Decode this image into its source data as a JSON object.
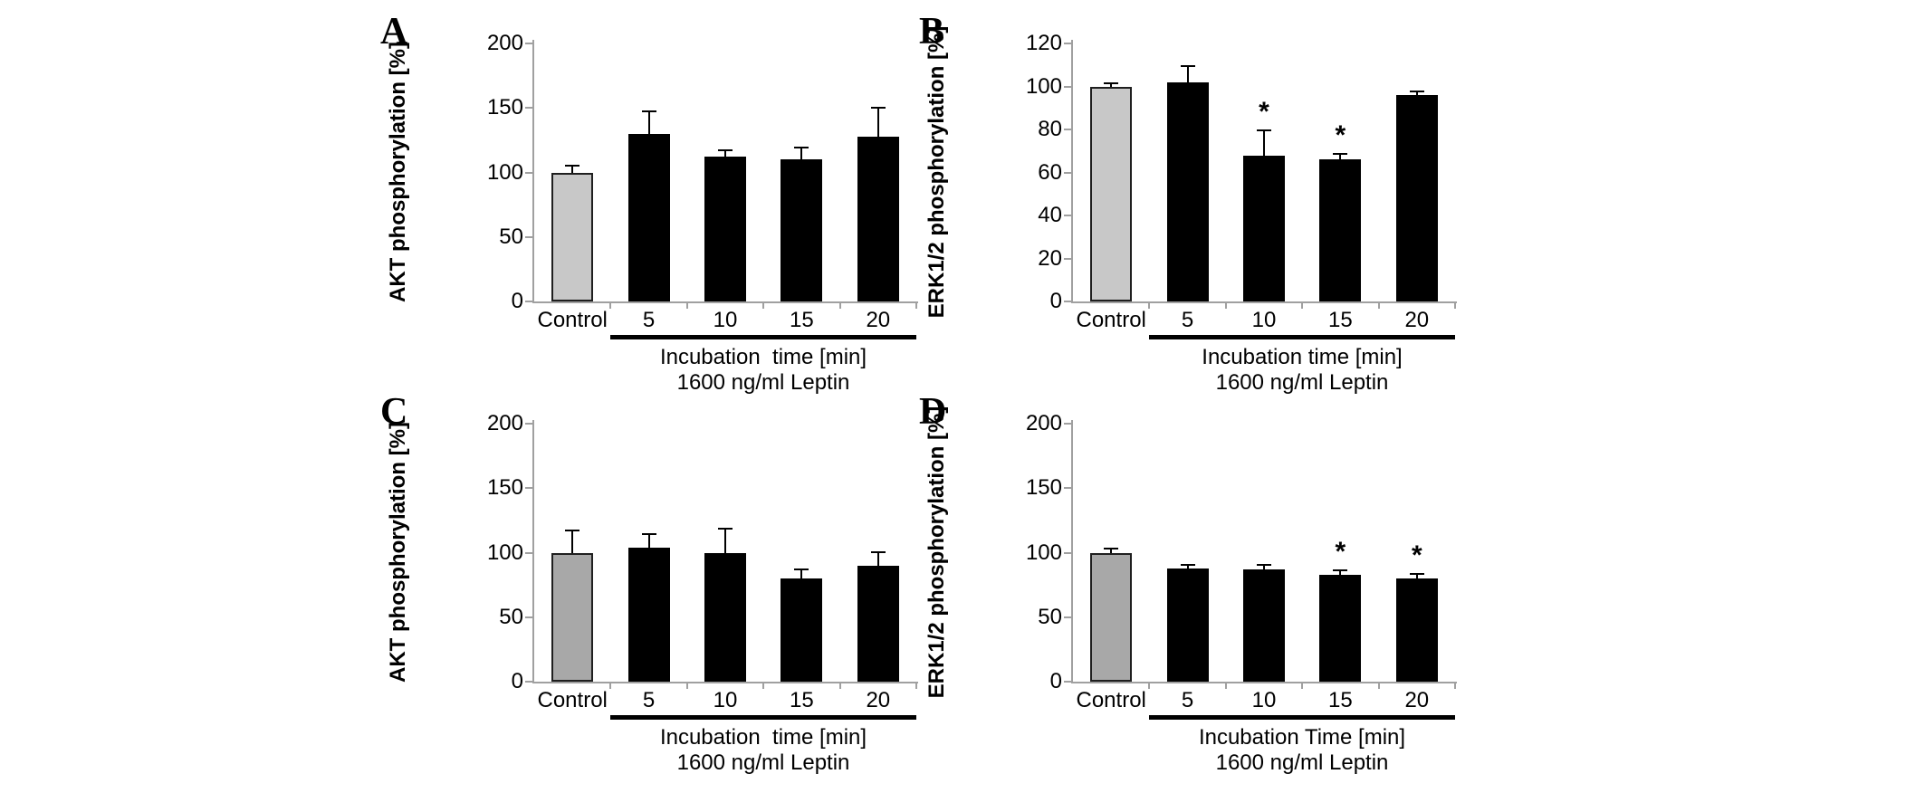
{
  "figure": {
    "background": "#ffffff",
    "axis_color": "#a0a0a0",
    "bar_color": "#000000",
    "error_color": "#000000",
    "control_border_color": "#1f1f1f",
    "significance_symbol": "*"
  },
  "chart_data": [
    {
      "panel": "A",
      "type": "bar",
      "ylabel": "AKT phosphorylation [%]",
      "ylim": [
        0,
        200
      ],
      "yticks": [
        0,
        50,
        100,
        150,
        200
      ],
      "categories": [
        "Control",
        "5",
        "10",
        "15",
        "20"
      ],
      "values": [
        100,
        130,
        112,
        110,
        128
      ],
      "errors_plus": [
        6,
        18,
        6,
        10,
        23
      ],
      "significant": [
        false,
        false,
        false,
        false,
        false
      ],
      "control_fill": "#c8c8c8",
      "xlabel_line1": "Incubation  time [min]",
      "xlabel_line2": "1600 ng/ml Leptin",
      "grid": false,
      "legend": "none"
    },
    {
      "panel": "B",
      "type": "bar",
      "ylabel": "ERK1/2 phosphorylation [%]",
      "ylim": [
        0,
        120
      ],
      "yticks": [
        0,
        20,
        40,
        60,
        80,
        100,
        120
      ],
      "categories": [
        "Control",
        "5",
        "10",
        "15",
        "20"
      ],
      "values": [
        100,
        102,
        68,
        66,
        96
      ],
      "errors_plus": [
        2,
        8,
        12,
        3,
        2
      ],
      "significant": [
        false,
        false,
        true,
        true,
        false
      ],
      "control_fill": "#c8c8c8",
      "xlabel_line1": "Incubation time [min]",
      "xlabel_line2": "1600 ng/ml Leptin",
      "grid": false,
      "legend": "none"
    },
    {
      "panel": "C",
      "type": "bar",
      "ylabel": "AKT phosphorylation [%]",
      "ylim": [
        0,
        200
      ],
      "yticks": [
        0,
        50,
        100,
        150,
        200
      ],
      "categories": [
        "Control",
        "5",
        "10",
        "15",
        "20"
      ],
      "values": [
        100,
        104,
        100,
        80,
        90
      ],
      "errors_plus": [
        18,
        11,
        19,
        8,
        11
      ],
      "significant": [
        false,
        false,
        false,
        false,
        false
      ],
      "control_fill": "#a8a8a8",
      "xlabel_line1": "Incubation  time [min]",
      "xlabel_line2": "1600 ng/ml Leptin",
      "grid": false,
      "legend": "none"
    },
    {
      "panel": "D",
      "type": "bar",
      "ylabel": "ERK1/2 phosphorylation [%]",
      "ylim": [
        0,
        200
      ],
      "yticks": [
        0,
        50,
        100,
        150,
        200
      ],
      "categories": [
        "Control",
        "5",
        "10",
        "15",
        "20"
      ],
      "values": [
        100,
        88,
        87,
        83,
        80
      ],
      "errors_plus": [
        4,
        3,
        4,
        4,
        4
      ],
      "significant": [
        false,
        false,
        false,
        true,
        true
      ],
      "control_fill": "#a8a8a8",
      "xlabel_line1": "Incubation Time [min]",
      "xlabel_line2": "1600 ng/ml Leptin",
      "grid": false,
      "legend": "none"
    }
  ]
}
